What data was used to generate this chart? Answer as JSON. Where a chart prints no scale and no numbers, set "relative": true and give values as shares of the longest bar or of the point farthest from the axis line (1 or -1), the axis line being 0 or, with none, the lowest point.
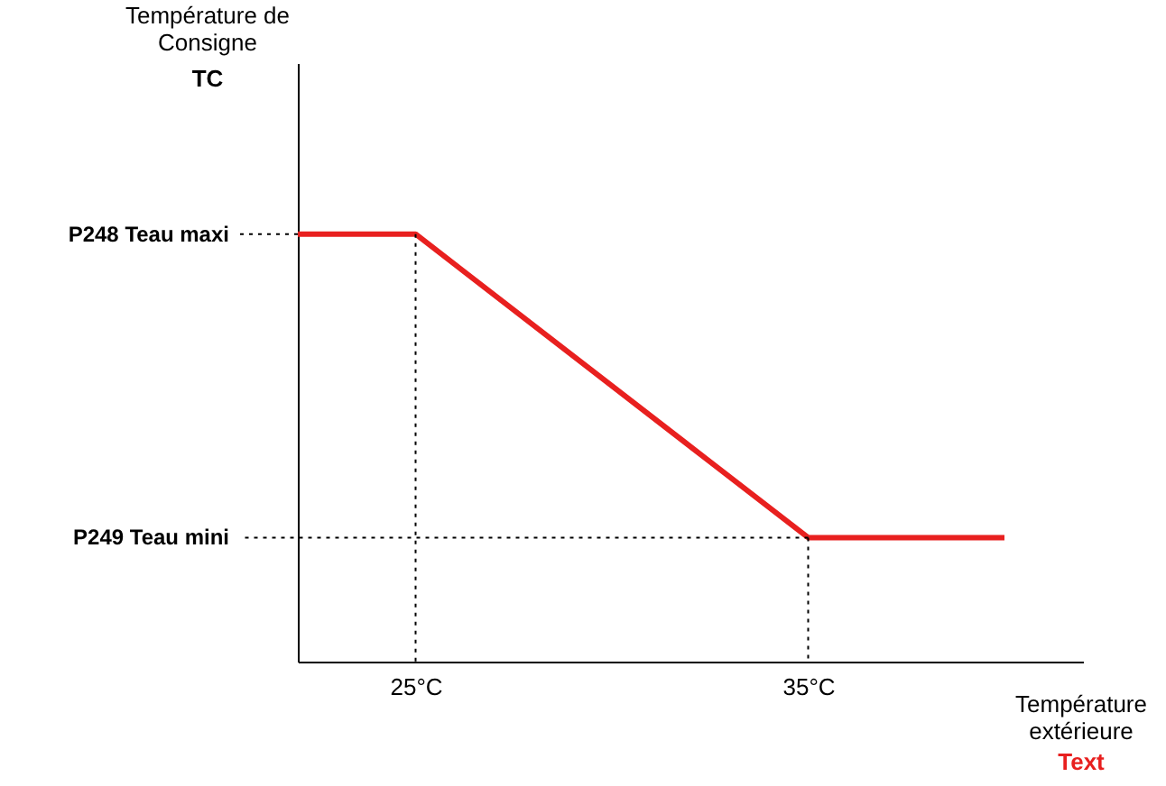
{
  "chart_data": {
    "type": "line",
    "relative": true,
    "xlabel": "Température extérieure",
    "annotations": [
      "Température de Consigne",
      "TC",
      "Text"
    ],
    "xlim": [
      22,
      42
    ],
    "xticks": [
      {
        "value": 25,
        "label": "25°C"
      },
      {
        "value": 35,
        "label": "35°C"
      }
    ],
    "line_style": "solid",
    "marker": "none",
    "series": [
      {
        "color": "#e8201f",
        "x": [
          22,
          25,
          35,
          40
        ],
        "values": [
          1,
          1,
          0.29,
          0.29
        ]
      }
    ],
    "ref_lines": [
      {
        "axis": "y",
        "value": 1,
        "label": "P248 Teau maxi",
        "color": "#000000",
        "line_style": "dotted"
      },
      {
        "axis": "y",
        "value": 0.29,
        "label": "P249 Teau mini",
        "color": "#000000",
        "line_style": "dotted"
      },
      {
        "axis": "x",
        "value": 25,
        "label": null,
        "color": "#000000",
        "line_style": "dotted"
      },
      {
        "axis": "x",
        "value": 35,
        "label": null,
        "color": "#000000",
        "line_style": "dotted"
      }
    ]
  }
}
